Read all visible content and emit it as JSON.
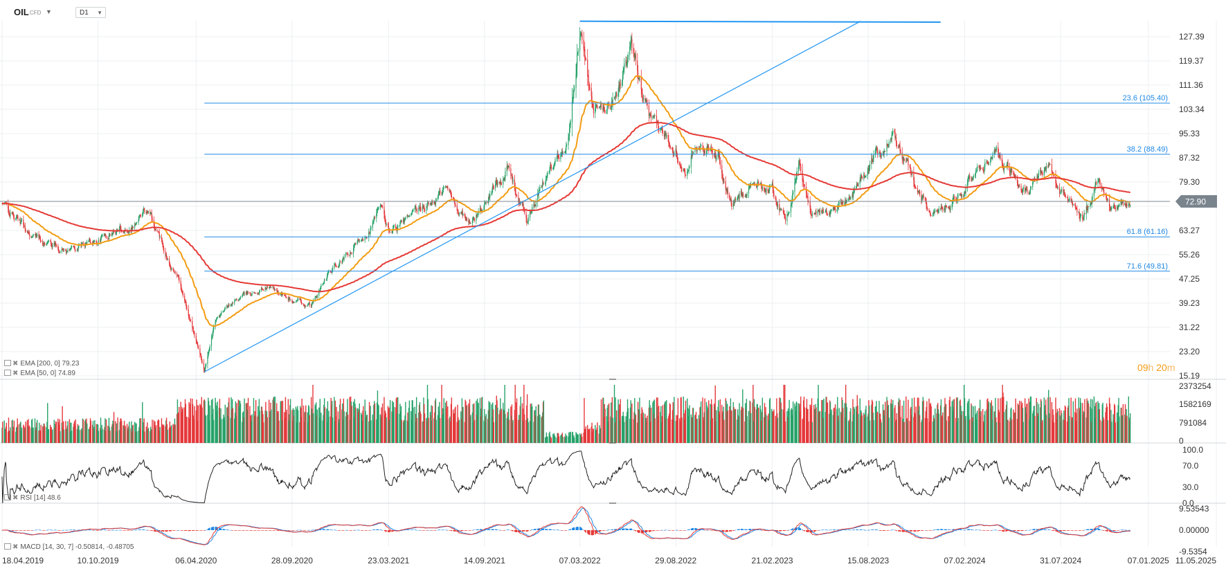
{
  "header": {
    "symbol": "OIL",
    "symbol_type": "CFD",
    "timeframe": "D1"
  },
  "countdown": {
    "hours": "09",
    "hours_unit": "h",
    "minutes": "20",
    "minutes_unit": "m"
  },
  "colors": {
    "up": "#26a269",
    "down": "#e5383b",
    "ema200": "#e53935",
    "ema50": "#f39c12",
    "fib": "#1e88e5",
    "trend": "#2196f3",
    "rsi": "#222222",
    "macd": "#e53935",
    "macd_signal": "#1e88e5",
    "grid": "#eceff1",
    "axis_text": "#333333"
  },
  "chart_data": [
    {
      "type": "candlestick",
      "title": "OIL CFD D1",
      "ylim": [
        15.19,
        135.0
      ],
      "price_ticks": [
        "127.39",
        "119.37",
        "111.36",
        "103.34",
        "95.33",
        "87.32",
        "79.30",
        "71.29",
        "63.27",
        "55.26",
        "47.25",
        "39.23",
        "31.22",
        "23.20",
        "15.19"
      ],
      "date_ticks": [
        "18.04.2019",
        "10.10.2019",
        "06.04.2020",
        "28.09.2020",
        "23.03.2021",
        "14.09.2021",
        "07.03.2022",
        "29.08.2022",
        "21.02.2023",
        "15.08.2023",
        "07.02.2024",
        "31.07.2024",
        "07.01.2025",
        "11.05.2025"
      ],
      "last_price": "72.90",
      "price_path": [
        [
          "18.04.2019",
          72
        ],
        [
          "15.06.2019",
          61
        ],
        [
          "15.08.2019",
          57
        ],
        [
          "10.10.2019",
          60
        ],
        [
          "15.12.2019",
          66
        ],
        [
          "06.01.2020",
          70
        ],
        [
          "15.02.2020",
          55
        ],
        [
          "09.03.2020",
          46
        ],
        [
          "01.04.2020",
          30
        ],
        [
          "21.04.2020",
          17
        ],
        [
          "10.05.2020",
          33
        ],
        [
          "15.06.2020",
          40
        ],
        [
          "15.08.2020",
          45
        ],
        [
          "28.09.2020",
          40
        ],
        [
          "02.11.2020",
          38
        ],
        [
          "01.12.2020",
          48
        ],
        [
          "15.01.2021",
          56
        ],
        [
          "08.03.2021",
          70
        ],
        [
          "23.03.2021",
          63
        ],
        [
          "15.05.2021",
          68
        ],
        [
          "05.07.2021",
          77
        ],
        [
          "20.08.2021",
          65
        ],
        [
          "14.09.2021",
          72
        ],
        [
          "25.10.2021",
          85
        ],
        [
          "01.12.2021",
          66
        ],
        [
          "15.01.2022",
          85
        ],
        [
          "15.02.2022",
          95
        ],
        [
          "07.03.2022",
          132
        ],
        [
          "01.04.2022",
          100
        ],
        [
          "01.05.2022",
          105
        ],
        [
          "08.06.2022",
          122
        ],
        [
          "15.07.2022",
          97
        ],
        [
          "29.08.2022",
          92
        ],
        [
          "15.09.2022",
          84
        ],
        [
          "03.10.2022",
          94
        ],
        [
          "15.11.2022",
          88
        ],
        [
          "09.12.2022",
          71
        ],
        [
          "15.01.2023",
          80
        ],
        [
          "21.02.2023",
          77
        ],
        [
          "17.03.2023",
          67
        ],
        [
          "12.04.2023",
          84
        ],
        [
          "03.05.2023",
          69
        ],
        [
          "15.06.2023",
          70
        ],
        [
          "15.07.2023",
          76
        ],
        [
          "15.08.2023",
          84
        ],
        [
          "27.09.2023",
          95
        ],
        [
          "15.11.2023",
          76
        ],
        [
          "13.12.2023",
          69
        ],
        [
          "07.02.2024",
          77
        ],
        [
          "05.04.2024",
          91
        ],
        [
          "04.06.2024",
          74
        ],
        [
          "05.07.2024",
          87
        ],
        [
          "31.07.2024",
          77
        ],
        [
          "10.09.2024",
          67
        ],
        [
          "07.10.2024",
          80
        ],
        [
          "01.11.2024",
          70
        ],
        [
          "25.11.2024",
          71
        ],
        [
          "05.12.2024",
          72.9
        ]
      ],
      "ema200": {
        "label": "EMA",
        "params": "[200, 0]",
        "value": "79.23"
      },
      "ema50": {
        "label": "EMA",
        "params": "[50, 0]",
        "value": "74.89"
      },
      "fibonacci": [
        {
          "label": "23.6 (105.40)",
          "value": 105.4
        },
        {
          "label": "38.2 (88.49)",
          "value": 88.49
        },
        {
          "label": "61.8 (61.16)",
          "value": 61.16
        },
        {
          "label": "71.6 (49.81)",
          "value": 49.81
        }
      ],
      "trendline": [
        [
          "21.04.2020",
          16.5
        ],
        [
          "01.08.2023",
          132.5
        ]
      ],
      "high_line": [
        [
          "07.03.2022",
          132.5
        ],
        [
          "25.12.2023",
          132.2
        ]
      ]
    },
    {
      "type": "bar",
      "title": "Volume",
      "ticks": [
        "2373254",
        "1582169",
        "791084",
        "0"
      ],
      "ylim": [
        0,
        2373254
      ]
    },
    {
      "type": "line",
      "title": "RSI",
      "label": "RSI",
      "params": "[14]",
      "value": "48.6",
      "ticks": [
        "100.0",
        "70.0",
        "30.0",
        "0.0"
      ],
      "ylim": [
        0,
        100
      ]
    },
    {
      "type": "line",
      "title": "MACD",
      "label": "MACD",
      "params": "[14, 30, 7]",
      "value_macd": "-0.50814",
      "value_signal": "-0.48705",
      "ticks": [
        "9.53543",
        "0.00000",
        "-9.5354"
      ],
      "ylim": [
        -9.5354,
        9.53543
      ]
    }
  ]
}
